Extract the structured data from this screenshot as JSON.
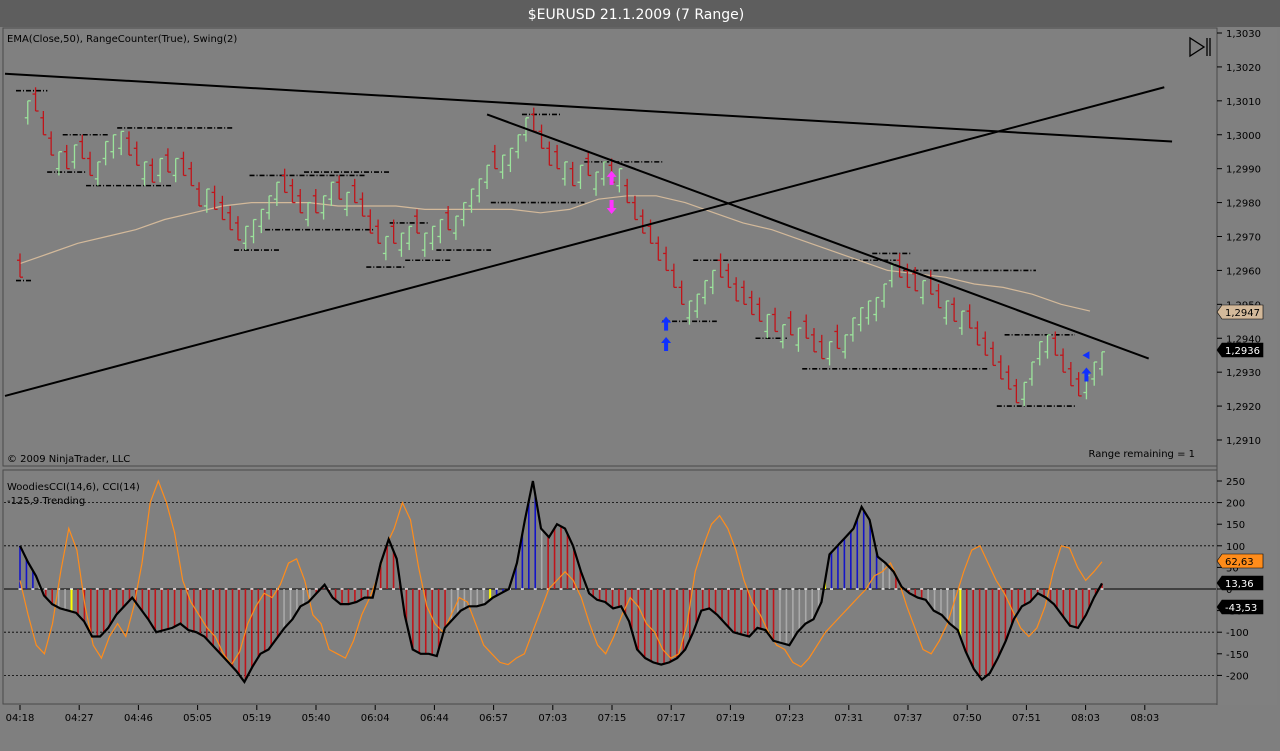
{
  "window": {
    "title": "$EURUSD  21.1.2009 (7 Range)"
  },
  "price_panel": {
    "indicator_label": "EMA(Close,50), RangeCounter(True), Swing(2)",
    "copyright": "© 2009 NinjaTrader, LLC",
    "range_remaining": "Range remaining = 1",
    "collapse_icon": "panel-collapse-icon",
    "ema_badge": "1,2947",
    "last_badge": "1,2936"
  },
  "cci_panel": {
    "indicator_label": "WoodiesCCI(14,6), CCI(14)",
    "status_label": "-125,9 Trending",
    "badges": [
      "62,63",
      "13,36",
      "-43,53"
    ]
  },
  "colors": {
    "background": "#808080",
    "up_bar": "#9be39b",
    "down_bar": "#c0141a",
    "ema": "#d3b99a",
    "swing": "#000000",
    "cci_turbo": "#ff8c1a",
    "cci_main": "#000000",
    "hist_red": "#c0141a",
    "hist_blue": "#1414c8",
    "hist_gray": "#a9a9a9",
    "hist_yellow": "#ffff00",
    "arrow_blue": "#1030ff",
    "arrow_magenta": "#ff33ff"
  },
  "chart_data": [
    {
      "type": "ohlc",
      "title": "$EURUSD  21.1.2009 (7 Range)",
      "ylim": [
        1.2902,
        1.3032
      ],
      "y_ticks": [
        "1,2910",
        "1,2920",
        "1,2930",
        "1,2940",
        "1,2950",
        "1,2960",
        "1,2970",
        "1,2980",
        "1,2990",
        "1,3000",
        "1,3010",
        "1,3020",
        "1,3030"
      ],
      "x_ticks": [
        "04:18",
        "04:27",
        "04:46",
        "05:05",
        "05:19",
        "05:40",
        "06:04",
        "06:44",
        "06:57",
        "07:03",
        "07:15",
        "07:17",
        "07:19",
        "07:23",
        "07:31",
        "07:37",
        "07:50",
        "07:51",
        "08:03",
        "08:03"
      ],
      "closes": [
        1.2958,
        1.301,
        1.3007,
        1.3,
        1.2994,
        1.2995,
        1.299,
        1.2997,
        1.2993,
        1.2988,
        1.2992,
        1.2998,
        1.3,
        1.3001,
        1.2994,
        1.2991,
        1.2992,
        1.2986,
        1.2993,
        1.2989,
        1.2993,
        1.2988,
        1.2985,
        1.2979,
        1.2984,
        1.2978,
        1.2975,
        1.2972,
        1.2969,
        1.2973,
        1.2975,
        1.2978,
        1.2982,
        1.2986,
        1.2983,
        1.298,
        1.2977,
        1.298,
        1.2977,
        1.2982,
        1.2986,
        1.2981,
        1.2983,
        1.298,
        1.2976,
        1.2971,
        1.2968,
        1.297,
        1.2968,
        1.2971,
        1.2973,
        1.2971,
        1.2971,
        1.2973,
        1.2975,
        1.2972,
        1.2976,
        1.298,
        1.2984,
        1.2987,
        1.2991,
        1.299,
        1.2994,
        1.2996,
        1.3,
        1.3005,
        1.3001,
        1.2996,
        1.2991,
        1.299,
        1.2992,
        1.2985,
        1.2991,
        1.2988,
        1.2989,
        1.2992,
        1.2986,
        1.299,
        1.298,
        1.2975,
        1.2971,
        1.2968,
        1.2963,
        1.296,
        1.2955,
        1.295,
        1.2951,
        1.2953,
        1.2957,
        1.296,
        1.2958,
        1.2955,
        1.2951,
        1.295,
        1.2947,
        1.2945,
        1.2947,
        1.2942,
        1.2944,
        1.2941,
        1.2943,
        1.294,
        1.2936,
        1.2934,
        1.2939,
        1.2937,
        1.2941,
        1.2946,
        1.2949,
        1.2951,
        1.2952,
        1.2956,
        1.2962,
        1.2958,
        1.2955,
        1.2954,
        1.2957,
        1.2953,
        1.2949,
        1.2951,
        1.2945,
        1.2948,
        1.2943,
        1.2938,
        1.2935,
        1.2932,
        1.2928,
        1.2925,
        1.2921,
        1.2927,
        1.2933,
        1.2939,
        1.2941,
        1.2935,
        1.293,
        1.2926,
        1.2923,
        1.2929,
        1.2933,
        1.2936
      ],
      "ema": [
        1.2962,
        1.2965,
        1.2968,
        1.297,
        1.2972,
        1.2975,
        1.2977,
        1.2979,
        1.298,
        1.298,
        1.298,
        1.2979,
        1.2979,
        1.2979,
        1.2978,
        1.2978,
        1.2978,
        1.2978,
        1.2977,
        1.2978,
        1.2981,
        1.2982,
        1.2982,
        1.298,
        1.2977,
        1.2974,
        1.2972,
        1.2969,
        1.2966,
        1.2963,
        1.296,
        1.2959,
        1.2958,
        1.2956,
        1.2955,
        1.2953,
        1.295,
        1.2948
      ],
      "swing_levels": [
        {
          "price": 1.3013,
          "x0": 0,
          "x1": 3
        },
        {
          "price": 1.3,
          "x0": 6,
          "x1": 11
        },
        {
          "price": 1.3002,
          "x0": 13,
          "x1": 27
        },
        {
          "price": 1.2989,
          "x0": 4,
          "x1": 8
        },
        {
          "price": 1.2985,
          "x0": 9,
          "x1": 19
        },
        {
          "price": 1.2988,
          "x0": 30,
          "x1": 44
        },
        {
          "price": 1.2989,
          "x0": 37,
          "x1": 47
        },
        {
          "price": 1.2972,
          "x0": 32,
          "x1": 45
        },
        {
          "price": 1.2966,
          "x0": 28,
          "x1": 33
        },
        {
          "price": 1.2957,
          "x0": 0,
          "x1": 1
        },
        {
          "price": 1.2974,
          "x0": 48,
          "x1": 52
        },
        {
          "price": 1.2963,
          "x0": 50,
          "x1": 55
        },
        {
          "price": 1.2961,
          "x0": 45,
          "x1": 49
        },
        {
          "price": 1.2966,
          "x0": 54,
          "x1": 60
        },
        {
          "price": 1.3006,
          "x0": 65,
          "x1": 69
        },
        {
          "price": 1.298,
          "x0": 61,
          "x1": 72
        },
        {
          "price": 1.2992,
          "x0": 73,
          "x1": 82
        },
        {
          "price": 1.2963,
          "x0": 87,
          "x1": 112
        },
        {
          "price": 1.2945,
          "x0": 83,
          "x1": 89
        },
        {
          "price": 1.294,
          "x0": 95,
          "x1": 98
        },
        {
          "price": 1.2931,
          "x0": 101,
          "x1": 124
        },
        {
          "price": 1.2965,
          "x0": 110,
          "x1": 114
        },
        {
          "price": 1.296,
          "x0": 114,
          "x1": 130
        },
        {
          "price": 1.2941,
          "x0": 127,
          "x1": 135
        },
        {
          "price": 1.292,
          "x0": 126,
          "x1": 135
        }
      ],
      "trendlines": [
        {
          "p0": [
            0,
            1.3018
          ],
          "p1": [
            148,
            1.2998
          ]
        },
        {
          "p0": [
            0,
            1.2923
          ],
          "p1": [
            147,
            1.3014
          ]
        },
        {
          "p0": [
            60,
            1.3006
          ],
          "p1": [
            145,
            1.2934
          ]
        }
      ],
      "arrows": [
        {
          "bar": 76,
          "price": 1.2987,
          "dir": "up",
          "color": "magenta"
        },
        {
          "bar": 76,
          "price": 1.2979,
          "dir": "down",
          "color": "magenta"
        },
        {
          "bar": 83,
          "price": 1.2944,
          "dir": "up",
          "color": "blue"
        },
        {
          "bar": 83,
          "price": 1.2938,
          "dir": "up",
          "color": "blue"
        },
        {
          "bar": 137,
          "price": 1.2929,
          "dir": "up",
          "color": "blue"
        },
        {
          "bar": 137,
          "price": 1.2935,
          "dir": "left",
          "color": "blue"
        }
      ]
    },
    {
      "type": "bar+line",
      "title": "WoodiesCCI(14,6), CCI(14)",
      "ylim": [
        -265,
        265
      ],
      "y_ticks": [
        "-200",
        "-150",
        "-100",
        "-50",
        "0",
        "50",
        "100",
        "150",
        "200",
        "250"
      ],
      "ref_levels": [
        -200,
        -100,
        100,
        200
      ],
      "cci": [
        100,
        62,
        30,
        -15,
        -35,
        -45,
        -50,
        -55,
        -75,
        -110,
        -110,
        -90,
        -60,
        -40,
        -20,
        -45,
        -70,
        -100,
        -95,
        -90,
        -80,
        -95,
        -100,
        -110,
        -130,
        -150,
        -170,
        -190,
        -215,
        -180,
        -150,
        -140,
        -115,
        -90,
        -70,
        -40,
        -30,
        -10,
        10,
        -20,
        -35,
        -35,
        -30,
        -20,
        -20,
        60,
        115,
        70,
        -60,
        -140,
        -150,
        -150,
        -155,
        -90,
        -70,
        -50,
        -40,
        -40,
        -35,
        -20,
        -10,
        0,
        60,
        160,
        250,
        140,
        120,
        150,
        140,
        100,
        40,
        -10,
        -25,
        -30,
        -45,
        -40,
        -75,
        -140,
        -160,
        -170,
        -175,
        -170,
        -160,
        -140,
        -100,
        -50,
        -45,
        -60,
        -80,
        -100,
        -105,
        -110,
        -90,
        -95,
        -120,
        -125,
        -130,
        -100,
        -80,
        -70,
        -30,
        80,
        100,
        120,
        140,
        190,
        160,
        75,
        60,
        40,
        5,
        -10,
        -20,
        -25,
        -50,
        -60,
        -80,
        -95,
        -145,
        -185,
        -210,
        -195,
        -160,
        -120,
        -70,
        -40,
        -30,
        -10,
        -20,
        -35,
        -60,
        -85,
        -90,
        -60,
        -20,
        13
      ],
      "turbo": [
        20,
        -60,
        -130,
        -150,
        -80,
        40,
        140,
        90,
        -40,
        -130,
        -160,
        -110,
        -80,
        -110,
        -40,
        60,
        200,
        250,
        200,
        130,
        20,
        -30,
        -60,
        -90,
        -110,
        -150,
        -175,
        -145,
        -80,
        -40,
        -10,
        -20,
        10,
        60,
        70,
        20,
        -60,
        -80,
        -140,
        -150,
        -160,
        -120,
        -60,
        -20,
        30,
        100,
        140,
        200,
        160,
        50,
        -40,
        -80,
        -100,
        -60,
        -20,
        -30,
        -80,
        -130,
        -150,
        -170,
        -175,
        -160,
        -150,
        -100,
        -50,
        0,
        20,
        40,
        20,
        -20,
        -80,
        -130,
        -150,
        -110,
        -60,
        -20,
        -40,
        -80,
        -100,
        -140,
        -160,
        -150,
        -80,
        40,
        100,
        150,
        170,
        140,
        90,
        20,
        -30,
        -60,
        -100,
        -130,
        -140,
        -170,
        -180,
        -160,
        -130,
        -100,
        -80,
        -60,
        -40,
        -20,
        0,
        30,
        40,
        60,
        20,
        -40,
        -90,
        -140,
        -150,
        -120,
        -80,
        -20,
        40,
        90,
        100,
        60,
        20,
        -10,
        -50,
        -90,
        -110,
        -90,
        -40,
        40,
        100,
        95,
        50,
        20,
        40,
        63
      ],
      "hist_colors": "BBBGRRGGYRRRRRRRRRRRRRRRRRRRRRRRRRRRRRRRRGGGGGRRRRRRRRRRRRRRRRRRRRRGGGGGGYBBBBBBBGRRRRRRYRRRRRRRRRRRRRRRRRRRRRRRRRRRRRGGGGGGGYBBBBBBBBGGRRRRRGGGGGYRRRRRRRRRRRRRRRRRRRRRR"
    }
  ]
}
